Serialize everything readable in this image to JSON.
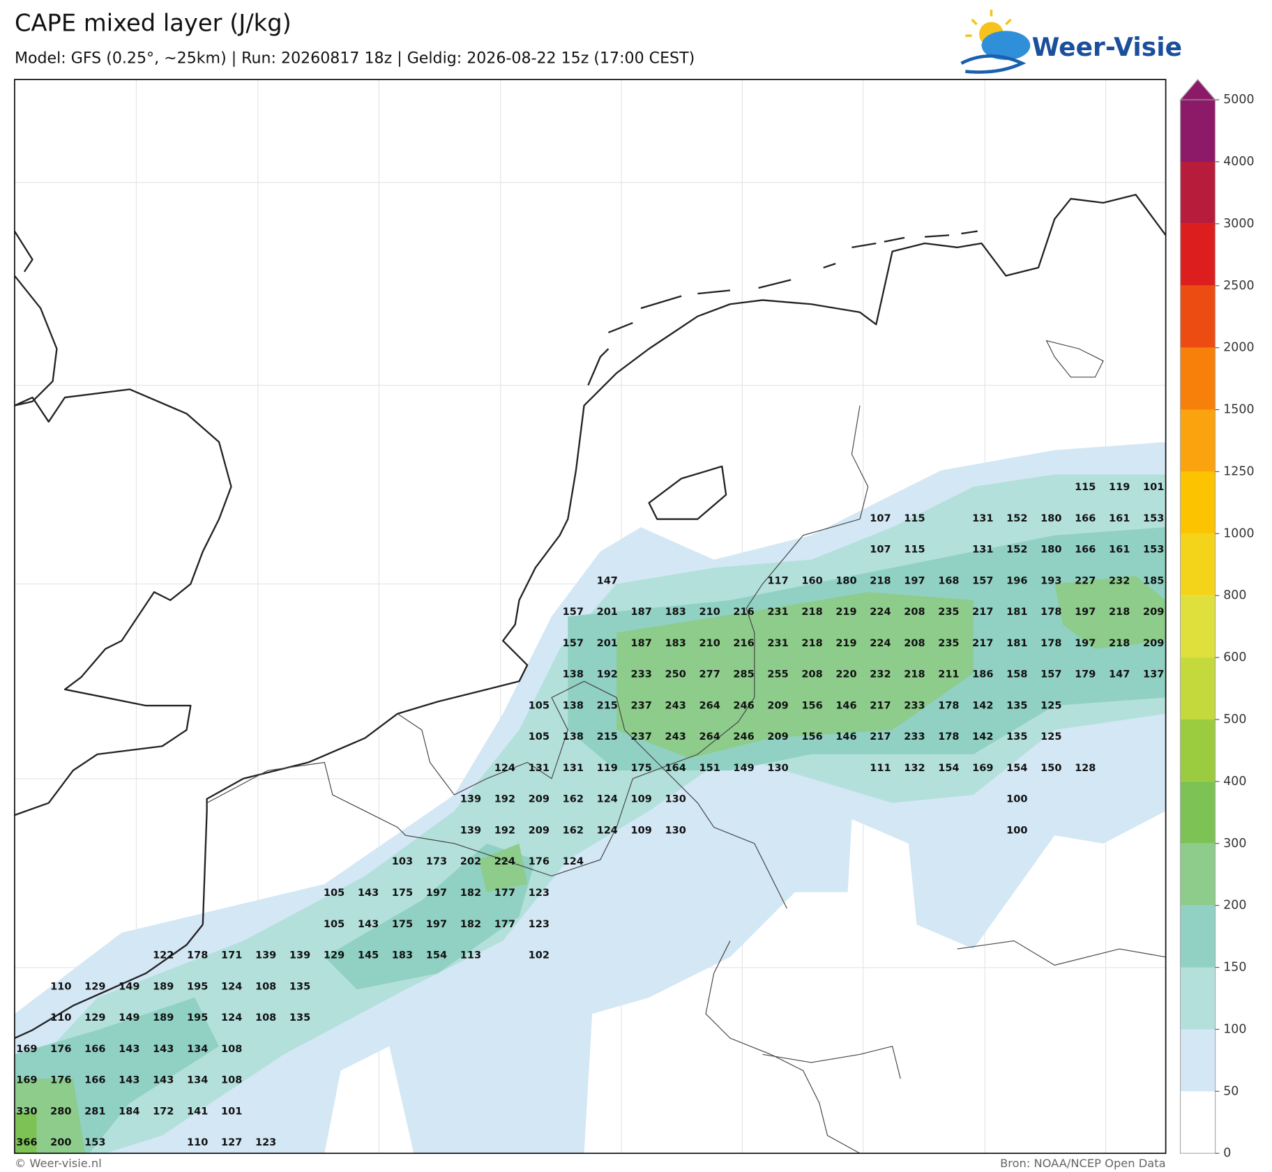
{
  "header": {
    "title": "CAPE mixed layer (J/kg)",
    "subtitle": "Model: GFS (0.25°, ~25km)  |  Run: 20260817 18z  |  Geldig: 2026-08-22 15z (17:00 CEST)",
    "logo": "Weer-Visie"
  },
  "map": {
    "rows": [
      [
        null,
        null,
        null,
        null,
        null,
        null,
        null,
        null,
        null,
        null,
        null,
        null,
        null,
        null,
        null,
        null,
        null,
        null,
        null,
        null,
        null,
        null,
        null,
        null,
        null,
        null,
        null,
        null,
        null,
        null,
        null,
        115,
        119,
        101
      ],
      [
        null,
        null,
        null,
        null,
        null,
        null,
        null,
        null,
        null,
        null,
        null,
        null,
        null,
        null,
        null,
        null,
        null,
        null,
        null,
        null,
        null,
        null,
        null,
        null,
        null,
        107,
        115,
        null,
        131,
        152,
        180,
        166,
        161,
        153
      ],
      [
        null,
        null,
        null,
        null,
        null,
        null,
        null,
        null,
        null,
        null,
        null,
        null,
        null,
        null,
        null,
        null,
        null,
        null,
        null,
        null,
        null,
        null,
        null,
        null,
        null,
        107,
        115,
        null,
        131,
        152,
        180,
        166,
        161,
        153
      ],
      [
        null,
        null,
        null,
        null,
        null,
        null,
        null,
        null,
        null,
        null,
        null,
        null,
        null,
        null,
        null,
        null,
        null,
        147,
        null,
        null,
        null,
        null,
        117,
        160,
        180,
        218,
        197,
        168,
        157,
        196,
        193,
        227,
        232,
        185
      ],
      [
        null,
        null,
        null,
        null,
        null,
        null,
        null,
        null,
        null,
        null,
        null,
        null,
        null,
        null,
        null,
        null,
        157,
        201,
        187,
        183,
        210,
        216,
        231,
        218,
        219,
        224,
        208,
        235,
        217,
        181,
        178,
        197,
        218,
        209
      ],
      [
        null,
        null,
        null,
        null,
        null,
        null,
        null,
        null,
        null,
        null,
        null,
        null,
        null,
        null,
        null,
        null,
        157,
        201,
        187,
        183,
        210,
        216,
        231,
        218,
        219,
        224,
        208,
        235,
        217,
        181,
        178,
        197,
        218,
        209
      ],
      [
        null,
        null,
        null,
        null,
        null,
        null,
        null,
        null,
        null,
        null,
        null,
        null,
        null,
        null,
        null,
        null,
        138,
        192,
        233,
        250,
        277,
        285,
        255,
        208,
        220,
        232,
        218,
        211,
        186,
        158,
        157,
        179,
        147,
        137
      ],
      [
        null,
        null,
        null,
        null,
        null,
        null,
        null,
        null,
        null,
        null,
        null,
        null,
        null,
        null,
        null,
        105,
        138,
        215,
        237,
        243,
        264,
        246,
        209,
        156,
        146,
        217,
        233,
        178,
        142,
        135,
        125,
        null,
        null,
        null
      ],
      [
        null,
        null,
        null,
        null,
        null,
        null,
        null,
        null,
        null,
        null,
        null,
        null,
        null,
        null,
        null,
        105,
        138,
        215,
        237,
        243,
        264,
        246,
        209,
        156,
        146,
        217,
        233,
        178,
        142,
        135,
        125,
        null,
        null,
        null
      ],
      [
        null,
        null,
        null,
        null,
        null,
        null,
        null,
        null,
        null,
        null,
        null,
        null,
        null,
        null,
        124,
        131,
        131,
        119,
        175,
        164,
        151,
        149,
        130,
        null,
        null,
        111,
        132,
        154,
        169,
        154,
        150,
        128,
        null,
        null
      ],
      [
        null,
        null,
        null,
        null,
        null,
        null,
        null,
        null,
        null,
        null,
        null,
        null,
        null,
        139,
        192,
        209,
        162,
        124,
        109,
        130,
        null,
        null,
        null,
        null,
        null,
        null,
        null,
        null,
        null,
        100,
        null,
        null,
        null,
        null
      ],
      [
        null,
        null,
        null,
        null,
        null,
        null,
        null,
        null,
        null,
        null,
        null,
        null,
        null,
        139,
        192,
        209,
        162,
        124,
        109,
        130,
        null,
        null,
        null,
        null,
        null,
        null,
        null,
        null,
        null,
        100,
        null,
        null,
        null,
        null
      ],
      [
        null,
        null,
        null,
        null,
        null,
        null,
        null,
        null,
        null,
        null,
        null,
        103,
        173,
        202,
        224,
        176,
        124,
        null,
        null,
        null,
        null,
        null,
        null,
        null,
        null,
        null,
        null,
        null,
        null,
        null,
        null,
        null,
        null,
        null
      ],
      [
        null,
        null,
        null,
        null,
        null,
        null,
        null,
        null,
        null,
        105,
        143,
        175,
        197,
        182,
        177,
        123,
        null,
        null,
        null,
        null,
        null,
        null,
        null,
        null,
        null,
        null,
        null,
        null,
        null,
        null,
        null,
        null,
        null,
        null
      ],
      [
        null,
        null,
        null,
        null,
        null,
        null,
        null,
        null,
        null,
        105,
        143,
        175,
        197,
        182,
        177,
        123,
        null,
        null,
        null,
        null,
        null,
        null,
        null,
        null,
        null,
        null,
        null,
        null,
        null,
        null,
        null,
        null,
        null,
        null
      ],
      [
        null,
        null,
        null,
        null,
        122,
        178,
        171,
        139,
        139,
        129,
        145,
        183,
        154,
        113,
        null,
        102,
        null,
        null,
        null,
        null,
        null,
        null,
        null,
        null,
        null,
        null,
        null,
        null,
        null,
        null,
        null,
        null,
        null,
        null
      ],
      [
        null,
        110,
        129,
        149,
        189,
        195,
        124,
        108,
        135,
        null,
        null,
        null,
        null,
        null,
        null,
        null,
        null,
        null,
        null,
        null,
        null,
        null,
        null,
        null,
        null,
        null,
        null,
        null,
        null,
        null,
        null,
        null,
        null,
        null
      ],
      [
        null,
        110,
        129,
        149,
        189,
        195,
        124,
        108,
        135,
        null,
        null,
        null,
        null,
        null,
        null,
        null,
        null,
        null,
        null,
        null,
        null,
        null,
        null,
        null,
        null,
        null,
        null,
        null,
        null,
        null,
        null,
        null,
        null,
        null
      ],
      [
        169,
        176,
        166,
        143,
        143,
        134,
        108,
        null,
        null,
        null,
        null,
        null,
        null,
        null,
        null,
        null,
        null,
        null,
        null,
        null,
        null,
        null,
        null,
        null,
        null,
        null,
        null,
        null,
        null,
        null,
        null,
        null,
        null,
        null
      ],
      [
        169,
        176,
        166,
        143,
        143,
        134,
        108,
        null,
        null,
        null,
        null,
        null,
        null,
        null,
        null,
        null,
        null,
        null,
        null,
        null,
        null,
        null,
        null,
        null,
        null,
        null,
        null,
        null,
        null,
        null,
        null,
        null,
        null,
        null
      ],
      [
        330,
        280,
        281,
        184,
        172,
        141,
        101,
        null,
        null,
        null,
        null,
        null,
        null,
        null,
        null,
        null,
        null,
        null,
        null,
        null,
        null,
        null,
        null,
        null,
        null,
        null,
        null,
        null,
        null,
        null,
        null,
        null,
        null,
        null
      ],
      [
        366,
        200,
        153,
        null,
        null,
        110,
        127,
        123,
        null,
        null,
        null,
        null,
        null,
        null,
        null,
        null,
        null,
        null,
        null,
        null,
        null,
        null,
        null,
        null,
        null,
        null,
        null,
        null,
        null,
        null,
        null,
        null,
        null,
        null
      ]
    ]
  },
  "colorbar": {
    "levels": [
      0,
      50,
      100,
      150,
      200,
      300,
      400,
      500,
      600,
      800,
      1000,
      1250,
      1500,
      2000,
      2500,
      3000,
      4000,
      5000
    ],
    "colors": [
      "#ffffff",
      "#d3e7f5",
      "#b4e0dc",
      "#91d1c3",
      "#8dcc8b",
      "#7cc255",
      "#9bcb3e",
      "#c3d93c",
      "#dfe03b",
      "#f4d31b",
      "#fbc300",
      "#fba30f",
      "#f7800b",
      "#ec4c11",
      "#dc1f1e",
      "#b71c3b",
      "#8c1a68"
    ]
  },
  "footer": {
    "credit": "© Weer-visie.nl",
    "source": "Bron: NOAA/NCEP Open Data"
  }
}
